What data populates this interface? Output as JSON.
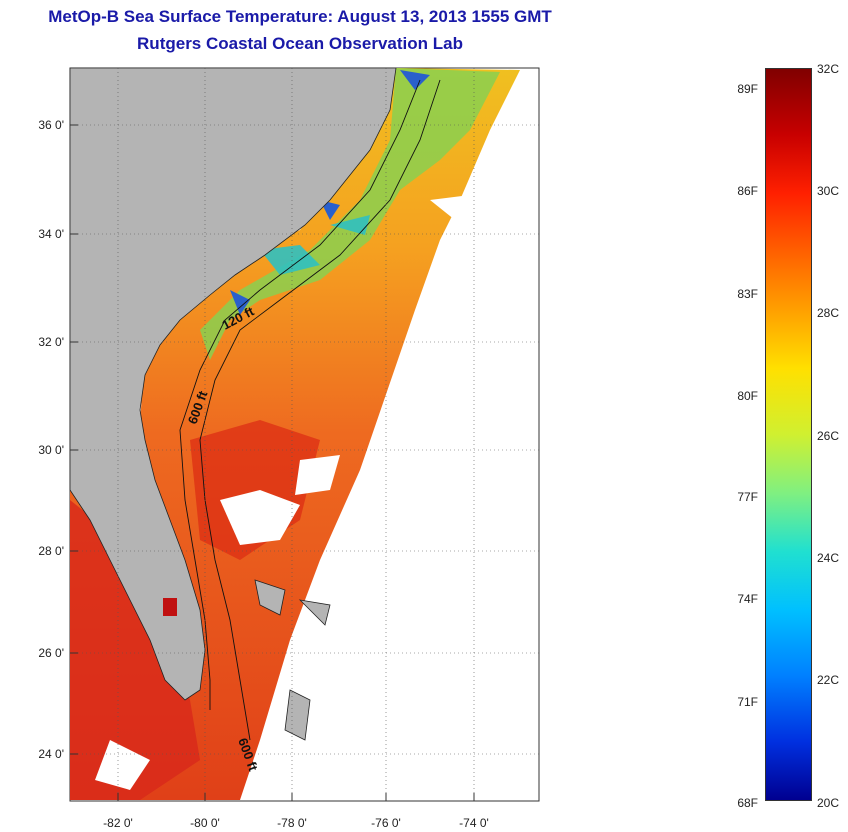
{
  "title": {
    "line1": "MetOp-B Sea Surface Temperature:  August 13, 2013 1555 GMT",
    "line2": "Rutgers Coastal Ocean Observation Lab"
  },
  "map": {
    "lat_labels": [
      "36 0'",
      "34 0'",
      "32 0'",
      "30 0'",
      "28 0'",
      "26 0'",
      "24 0'"
    ],
    "lon_labels": [
      "-82 0'",
      "-80 0'",
      "-78 0'",
      "-76 0'",
      "-74 0'"
    ],
    "contour_labels": [
      "120 ft",
      "600 ft",
      "600 ft"
    ],
    "colors": {
      "land": "#b4b4b4",
      "warm": "#e8401a",
      "hot": "#d82010",
      "mid": "#f5a020",
      "cool": "#7ad04a",
      "cold": "#2060d0"
    }
  },
  "colorbar": {
    "f_labels": [
      "89F",
      "86F",
      "83F",
      "80F",
      "77F",
      "74F",
      "71F",
      "68F"
    ],
    "c_labels": [
      "32C",
      "30C",
      "28C",
      "26C",
      "24C",
      "22C",
      "20C"
    ],
    "range_c": [
      20,
      32
    ],
    "range_f": [
      68,
      89.6
    ]
  }
}
